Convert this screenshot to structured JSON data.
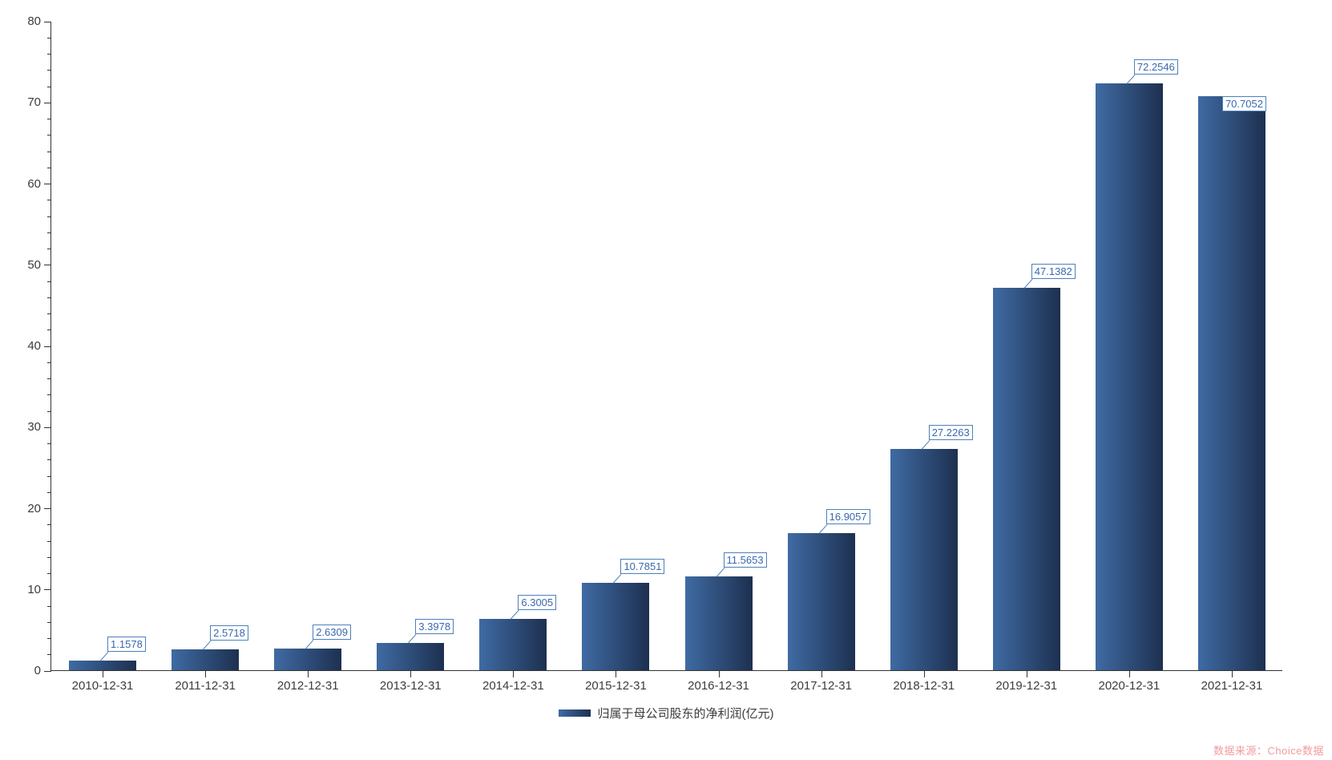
{
  "chart_data": {
    "type": "bar",
    "title": "",
    "categories": [
      "2010-12-31",
      "2011-12-31",
      "2012-12-31",
      "2013-12-31",
      "2014-12-31",
      "2015-12-31",
      "2016-12-31",
      "2017-12-31",
      "2018-12-31",
      "2019-12-31",
      "2020-12-31",
      "2021-12-31"
    ],
    "series": [
      {
        "name": "归属于母公司股东的净利润(亿元)",
        "values": [
          1.1578,
          2.5718,
          2.6309,
          3.3978,
          6.3005,
          10.7851,
          11.5653,
          16.9057,
          27.2263,
          47.1382,
          72.2546,
          70.7052
        ]
      }
    ],
    "data_labels": [
      "1.1578",
      "2.5718",
      "2.6309",
      "3.3978",
      "6.3005",
      "10.7851",
      "11.5653",
      "16.9057",
      "27.2263",
      "47.1382",
      "72.2546",
      "70.7052"
    ],
    "xlabel": "",
    "ylabel": "",
    "ylim": [
      0,
      80
    ],
    "yticks": [
      0,
      10,
      20,
      30,
      40,
      50,
      60,
      70,
      80
    ],
    "y_minor_step": 2,
    "grid": false,
    "legend_position": "bottom"
  },
  "legend": {
    "label": "归属于母公司股东的净利润(亿元)"
  },
  "watermark": {
    "text": "数据来源：Choice数据"
  },
  "colors": {
    "bar_gradient_start": "#3f6ba3",
    "bar_gradient_end": "#1d3050",
    "value_label_border": "#4d80ba",
    "value_label_text": "#3a68ad",
    "axis_line": "#333333",
    "tick_label": "#3c3c3c",
    "watermark": "#f29b9e"
  }
}
